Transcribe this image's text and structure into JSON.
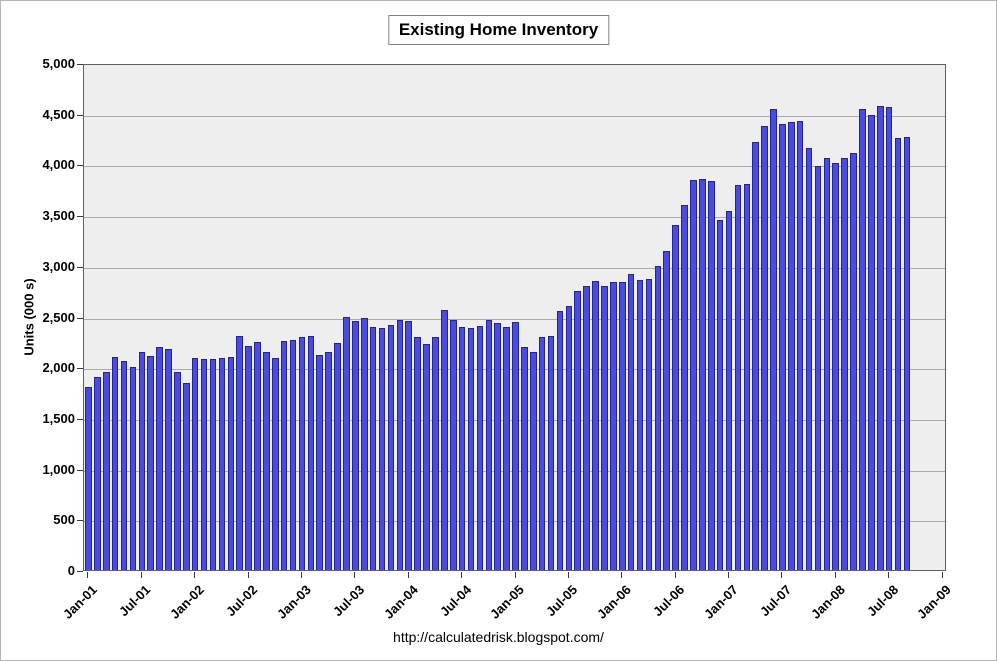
{
  "title": "Existing Home Inventory",
  "footer_url": "http://calculatedrisk.blogspot.com/",
  "chart_data": {
    "type": "bar",
    "title": "Existing Home Inventory",
    "ylabel": "Units (000 s)",
    "xlabel": "",
    "ylim": [
      0,
      5000
    ],
    "ytick_interval": 500,
    "grid": "horizontal",
    "legend": "none",
    "plot_bg": "#eeeeee",
    "grid_color": "#ababab",
    "bar_fill": "#4c4cdc",
    "bar_border": "#22229a",
    "ytick_labels": [
      "0",
      "500",
      "1,000",
      "1,500",
      "2,000",
      "2,500",
      "3,000",
      "3,500",
      "4,000",
      "4,500",
      "5,000"
    ],
    "xtick_labels": [
      "Jan-01",
      "Jul-01",
      "Jan-02",
      "Jul-02",
      "Jan-03",
      "Jul-03",
      "Jan-04",
      "Jul-04",
      "Jan-05",
      "Jul-05",
      "Jan-06",
      "Jul-06",
      "Jan-07",
      "Jul-07",
      "Jan-08",
      "Jul-08",
      "Jan-09"
    ],
    "categories": [
      "Jan-01",
      "Feb-01",
      "Mar-01",
      "Apr-01",
      "May-01",
      "Jun-01",
      "Jul-01",
      "Aug-01",
      "Sep-01",
      "Oct-01",
      "Nov-01",
      "Dec-01",
      "Jan-02",
      "Feb-02",
      "Mar-02",
      "Apr-02",
      "May-02",
      "Jun-02",
      "Jul-02",
      "Aug-02",
      "Sep-02",
      "Oct-02",
      "Nov-02",
      "Dec-02",
      "Jan-03",
      "Feb-03",
      "Mar-03",
      "Apr-03",
      "May-03",
      "Jun-03",
      "Jul-03",
      "Aug-03",
      "Sep-03",
      "Oct-03",
      "Nov-03",
      "Dec-03",
      "Jan-04",
      "Feb-04",
      "Mar-04",
      "Apr-04",
      "May-04",
      "Jun-04",
      "Jul-04",
      "Aug-04",
      "Sep-04",
      "Oct-04",
      "Nov-04",
      "Dec-04",
      "Jan-05",
      "Feb-05",
      "Mar-05",
      "Apr-05",
      "May-05",
      "Jun-05",
      "Jul-05",
      "Aug-05",
      "Sep-05",
      "Oct-05",
      "Nov-05",
      "Dec-05",
      "Jan-06",
      "Feb-06",
      "Mar-06",
      "Apr-06",
      "May-06",
      "Jun-06",
      "Jul-06",
      "Aug-06",
      "Sep-06",
      "Oct-06",
      "Nov-06",
      "Dec-06",
      "Jan-07",
      "Feb-07",
      "Mar-07",
      "Apr-07",
      "May-07",
      "Jun-07",
      "Jul-07",
      "Aug-07",
      "Sep-07",
      "Oct-07",
      "Nov-07",
      "Dec-07",
      "Jan-08",
      "Feb-08",
      "Mar-08",
      "Apr-08",
      "May-08",
      "Jun-08",
      "Jul-08",
      "Aug-08",
      "Sep-08"
    ],
    "values": [
      1800,
      1900,
      1950,
      2100,
      2060,
      2000,
      2150,
      2110,
      2200,
      2180,
      1950,
      1840,
      2090,
      2080,
      2080,
      2090,
      2100,
      2310,
      2210,
      2250,
      2150,
      2090,
      2260,
      2270,
      2300,
      2310,
      2120,
      2150,
      2240,
      2500,
      2460,
      2490,
      2400,
      2390,
      2420,
      2470,
      2460,
      2300,
      2230,
      2300,
      2560,
      2470,
      2400,
      2390,
      2410,
      2470,
      2440,
      2400,
      2450,
      2200,
      2150,
      2300,
      2310,
      2550,
      2600,
      2750,
      2800,
      2850,
      2800,
      2840,
      2840,
      2920,
      2860,
      2870,
      3000,
      3150,
      3400,
      3600,
      3850,
      3860,
      3840,
      3450,
      3540,
      3800,
      3810,
      4220,
      4380,
      4550,
      4400,
      4420,
      4430,
      4160,
      3980,
      4060,
      4010,
      4060,
      4110,
      4550,
      4490,
      4580,
      4570,
      4260,
      4270
    ]
  }
}
